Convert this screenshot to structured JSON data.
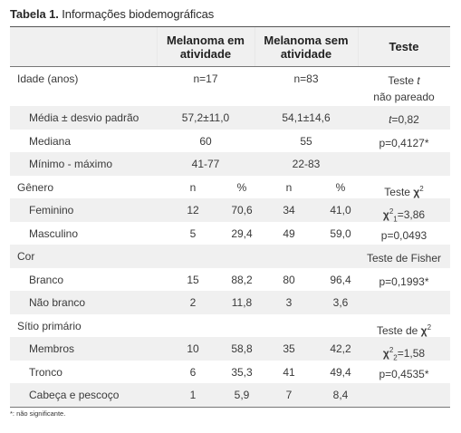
{
  "title": {
    "label": "Tabela 1.",
    "text": "Informações biodemográficas"
  },
  "headers": {
    "group1": "Melanoma em atividade",
    "group2": "Melanoma sem atividade",
    "test": "Teste"
  },
  "rows": [
    {
      "label": "Idade (anos)",
      "span1": "n=17",
      "span2": "n=83",
      "test": "Teste t não pareado",
      "indent": false
    },
    {
      "label": "Média ± desvio padrão",
      "span1": "57,2±11,0",
      "span2": "54,1±14,6",
      "test": "t=0,82",
      "indent": true
    },
    {
      "label": "Mediana",
      "span1": "60",
      "span2": "55",
      "test": "p=0,4127*",
      "indent": true
    },
    {
      "label": "Mínimo - máximo",
      "span1": "41-77",
      "span2": "22-83",
      "test": "",
      "indent": true
    },
    {
      "label": "Gênero",
      "n1": "n",
      "p1": "%",
      "n2": "n",
      "p2": "%",
      "test": "Teste χ2",
      "indent": false
    },
    {
      "label": "Feminino",
      "n1": "12",
      "p1": "70,6",
      "n2": "34",
      "p2": "41,0",
      "test": "χ21=3,86",
      "indent": true
    },
    {
      "label": "Masculino",
      "n1": "5",
      "p1": "29,4",
      "n2": "49",
      "p2": "59,0",
      "test": "p=0,0493",
      "indent": true
    },
    {
      "label": "Cor",
      "test": "Teste de Fisher",
      "indent": false
    },
    {
      "label": "Branco",
      "n1": "15",
      "p1": "88,2",
      "n2": "80",
      "p2": "96,4",
      "test": "p=0,1993*",
      "indent": true
    },
    {
      "label": "Não branco",
      "n1": "2",
      "p1": "11,8",
      "n2": "3",
      "p2": "3,6",
      "test": "",
      "indent": true
    },
    {
      "label": "Sítio primário",
      "test": "Teste de χ2",
      "indent": false
    },
    {
      "label": "Membros",
      "n1": "10",
      "p1": "58,8",
      "n2": "35",
      "p2": "42,2",
      "test": "χ22=1,58",
      "indent": true
    },
    {
      "label": "Tronco",
      "n1": "6",
      "p1": "35,3",
      "n2": "41",
      "p2": "49,4",
      "test": "p=0,4535*",
      "indent": true
    },
    {
      "label": "Cabeça e pescoço",
      "n1": "1",
      "p1": "5,9",
      "n2": "7",
      "p2": "8,4",
      "test": "",
      "indent": true
    }
  ],
  "test_parts": {
    "t_prefix": "Teste ",
    "t_italic": "t",
    "t_suffix": " não pareado",
    "t_stat_italic": "t",
    "t_stat_value": "=0,82",
    "chi": "χ",
    "chi_sup": "2",
    "chi_sub1": "1",
    "chi_sub2": "2",
    "chi1_value": "=3,86",
    "chi2_value": "=1,58",
    "gender_test_prefix": "Teste ",
    "site_test_prefix": "Teste de "
  },
  "footnote": "*: não significante."
}
